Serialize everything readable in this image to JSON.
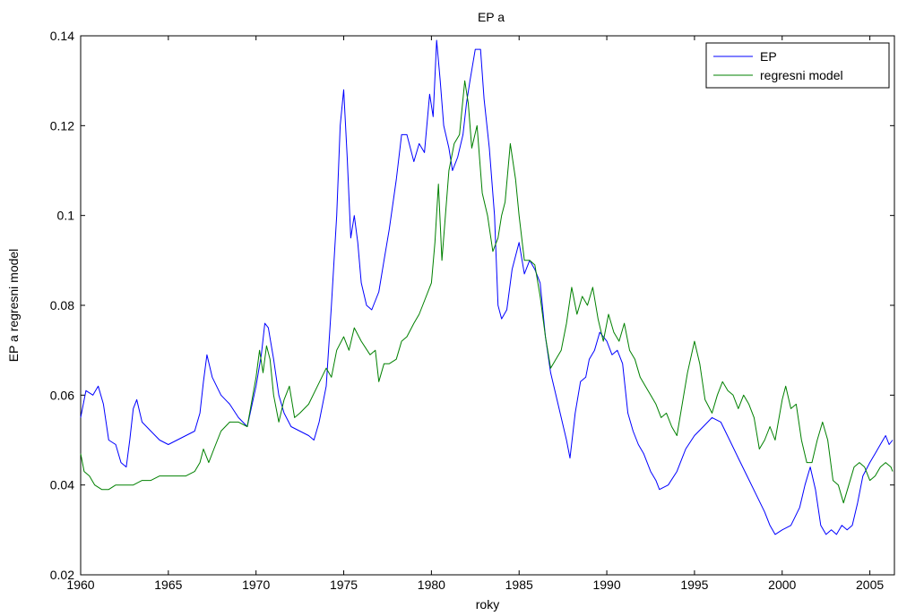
{
  "chart_data": {
    "type": "line",
    "title": "EP a",
    "xlabel": "roky",
    "ylabel": "EP a regresni model",
    "xlim": [
      1960,
      2006.4
    ],
    "ylim": [
      0.02,
      0.14
    ],
    "xticks": [
      1960,
      1965,
      1970,
      1975,
      1980,
      1985,
      1990,
      1995,
      2000,
      2005
    ],
    "xtick_labels": [
      "1960",
      "1965",
      "1970",
      "1975",
      "1980",
      "1985",
      "1990",
      "1995",
      "2000",
      "2005"
    ],
    "yticks": [
      0.02,
      0.04,
      0.06,
      0.08,
      0.1,
      0.12,
      0.14
    ],
    "ytick_labels": [
      "0.02",
      "0.04",
      "0.06",
      "0.08",
      "0.1",
      "0.12",
      "0.14"
    ],
    "grid": false,
    "legend_position": "top-right",
    "series": [
      {
        "name": "EP",
        "color": "#0000ff",
        "points": [
          [
            1960.0,
            0.055
          ],
          [
            1960.3,
            0.061
          ],
          [
            1960.7,
            0.06
          ],
          [
            1961.0,
            0.062
          ],
          [
            1961.3,
            0.058
          ],
          [
            1961.6,
            0.05
          ],
          [
            1962.0,
            0.049
          ],
          [
            1962.3,
            0.045
          ],
          [
            1962.6,
            0.044
          ],
          [
            1962.8,
            0.05
          ],
          [
            1963.0,
            0.057
          ],
          [
            1963.2,
            0.059
          ],
          [
            1963.5,
            0.054
          ],
          [
            1964.0,
            0.052
          ],
          [
            1964.5,
            0.05
          ],
          [
            1965.0,
            0.049
          ],
          [
            1965.5,
            0.05
          ],
          [
            1966.0,
            0.051
          ],
          [
            1966.5,
            0.052
          ],
          [
            1966.8,
            0.056
          ],
          [
            1967.0,
            0.063
          ],
          [
            1967.2,
            0.069
          ],
          [
            1967.5,
            0.064
          ],
          [
            1968.0,
            0.06
          ],
          [
            1968.5,
            0.058
          ],
          [
            1969.0,
            0.055
          ],
          [
            1969.5,
            0.053
          ],
          [
            1970.0,
            0.062
          ],
          [
            1970.3,
            0.069
          ],
          [
            1970.5,
            0.076
          ],
          [
            1970.7,
            0.075
          ],
          [
            1971.0,
            0.068
          ],
          [
            1971.3,
            0.06
          ],
          [
            1971.6,
            0.056
          ],
          [
            1972.0,
            0.053
          ],
          [
            1972.5,
            0.052
          ],
          [
            1973.0,
            0.051
          ],
          [
            1973.3,
            0.05
          ],
          [
            1973.6,
            0.054
          ],
          [
            1974.0,
            0.062
          ],
          [
            1974.3,
            0.08
          ],
          [
            1974.6,
            0.1
          ],
          [
            1974.8,
            0.12
          ],
          [
            1975.0,
            0.128
          ],
          [
            1975.2,
            0.113
          ],
          [
            1975.4,
            0.095
          ],
          [
            1975.6,
            0.1
          ],
          [
            1975.8,
            0.094
          ],
          [
            1976.0,
            0.085
          ],
          [
            1976.3,
            0.08
          ],
          [
            1976.6,
            0.079
          ],
          [
            1977.0,
            0.083
          ],
          [
            1977.3,
            0.09
          ],
          [
            1977.6,
            0.097
          ],
          [
            1978.0,
            0.108
          ],
          [
            1978.3,
            0.118
          ],
          [
            1978.6,
            0.118
          ],
          [
            1979.0,
            0.112
          ],
          [
            1979.3,
            0.116
          ],
          [
            1979.6,
            0.114
          ],
          [
            1979.9,
            0.127
          ],
          [
            1980.1,
            0.122
          ],
          [
            1980.3,
            0.139
          ],
          [
            1980.5,
            0.13
          ],
          [
            1980.7,
            0.12
          ],
          [
            1981.0,
            0.115
          ],
          [
            1981.2,
            0.11
          ],
          [
            1981.5,
            0.113
          ],
          [
            1981.8,
            0.118
          ],
          [
            1982.0,
            0.125
          ],
          [
            1982.2,
            0.13
          ],
          [
            1982.5,
            0.137
          ],
          [
            1982.8,
            0.137
          ],
          [
            1983.0,
            0.126
          ],
          [
            1983.3,
            0.115
          ],
          [
            1983.6,
            0.1
          ],
          [
            1983.8,
            0.08
          ],
          [
            1984.0,
            0.077
          ],
          [
            1984.3,
            0.079
          ],
          [
            1984.6,
            0.088
          ],
          [
            1985.0,
            0.094
          ],
          [
            1985.3,
            0.087
          ],
          [
            1985.6,
            0.09
          ],
          [
            1985.9,
            0.088
          ],
          [
            1986.2,
            0.085
          ],
          [
            1986.5,
            0.073
          ],
          [
            1986.8,
            0.065
          ],
          [
            1987.1,
            0.06
          ],
          [
            1987.4,
            0.055
          ],
          [
            1987.7,
            0.05
          ],
          [
            1987.9,
            0.046
          ],
          [
            1988.2,
            0.056
          ],
          [
            1988.5,
            0.063
          ],
          [
            1988.8,
            0.064
          ],
          [
            1989.0,
            0.068
          ],
          [
            1989.3,
            0.07
          ],
          [
            1989.6,
            0.074
          ],
          [
            1990.0,
            0.072
          ],
          [
            1990.3,
            0.069
          ],
          [
            1990.6,
            0.07
          ],
          [
            1990.9,
            0.067
          ],
          [
            1991.2,
            0.056
          ],
          [
            1991.5,
            0.052
          ],
          [
            1991.8,
            0.049
          ],
          [
            1992.1,
            0.047
          ],
          [
            1992.5,
            0.043
          ],
          [
            1992.8,
            0.041
          ],
          [
            1993.0,
            0.039
          ],
          [
            1993.5,
            0.04
          ],
          [
            1994.0,
            0.043
          ],
          [
            1994.5,
            0.048
          ],
          [
            1995.0,
            0.051
          ],
          [
            1995.5,
            0.053
          ],
          [
            1996.0,
            0.055
          ],
          [
            1996.5,
            0.054
          ],
          [
            1997.0,
            0.05
          ],
          [
            1997.5,
            0.046
          ],
          [
            1998.0,
            0.042
          ],
          [
            1998.5,
            0.038
          ],
          [
            1999.0,
            0.034
          ],
          [
            1999.3,
            0.031
          ],
          [
            1999.6,
            0.029
          ],
          [
            2000.0,
            0.03
          ],
          [
            2000.5,
            0.031
          ],
          [
            2001.0,
            0.035
          ],
          [
            2001.3,
            0.04
          ],
          [
            2001.6,
            0.044
          ],
          [
            2001.9,
            0.039
          ],
          [
            2002.2,
            0.031
          ],
          [
            2002.5,
            0.029
          ],
          [
            2002.8,
            0.03
          ],
          [
            2003.1,
            0.029
          ],
          [
            2003.4,
            0.031
          ],
          [
            2003.7,
            0.03
          ],
          [
            2004.0,
            0.031
          ],
          [
            2004.3,
            0.036
          ],
          [
            2004.6,
            0.042
          ],
          [
            2005.0,
            0.045
          ],
          [
            2005.3,
            0.047
          ],
          [
            2005.6,
            0.049
          ],
          [
            2005.9,
            0.051
          ],
          [
            2006.1,
            0.049
          ],
          [
            2006.3,
            0.05
          ]
        ]
      },
      {
        "name": "regresni model",
        "color": "#008000",
        "points": [
          [
            1960.0,
            0.047
          ],
          [
            1960.2,
            0.043
          ],
          [
            1960.5,
            0.042
          ],
          [
            1960.8,
            0.04
          ],
          [
            1961.2,
            0.039
          ],
          [
            1961.6,
            0.039
          ],
          [
            1962.0,
            0.04
          ],
          [
            1962.5,
            0.04
          ],
          [
            1963.0,
            0.04
          ],
          [
            1963.5,
            0.041
          ],
          [
            1964.0,
            0.041
          ],
          [
            1964.5,
            0.042
          ],
          [
            1965.0,
            0.042
          ],
          [
            1965.5,
            0.042
          ],
          [
            1966.0,
            0.042
          ],
          [
            1966.5,
            0.043
          ],
          [
            1966.8,
            0.045
          ],
          [
            1967.0,
            0.048
          ],
          [
            1967.3,
            0.045
          ],
          [
            1967.6,
            0.048
          ],
          [
            1968.0,
            0.052
          ],
          [
            1968.5,
            0.054
          ],
          [
            1969.0,
            0.054
          ],
          [
            1969.5,
            0.053
          ],
          [
            1970.0,
            0.064
          ],
          [
            1970.2,
            0.07
          ],
          [
            1970.4,
            0.065
          ],
          [
            1970.6,
            0.071
          ],
          [
            1970.8,
            0.068
          ],
          [
            1971.0,
            0.06
          ],
          [
            1971.3,
            0.054
          ],
          [
            1971.6,
            0.059
          ],
          [
            1971.9,
            0.062
          ],
          [
            1972.2,
            0.055
          ],
          [
            1972.5,
            0.056
          ],
          [
            1973.0,
            0.058
          ],
          [
            1973.5,
            0.062
          ],
          [
            1974.0,
            0.066
          ],
          [
            1974.3,
            0.064
          ],
          [
            1974.6,
            0.07
          ],
          [
            1975.0,
            0.073
          ],
          [
            1975.3,
            0.07
          ],
          [
            1975.6,
            0.075
          ],
          [
            1976.0,
            0.072
          ],
          [
            1976.5,
            0.069
          ],
          [
            1976.8,
            0.07
          ],
          [
            1977.0,
            0.063
          ],
          [
            1977.3,
            0.067
          ],
          [
            1977.6,
            0.067
          ],
          [
            1978.0,
            0.068
          ],
          [
            1978.3,
            0.072
          ],
          [
            1978.6,
            0.073
          ],
          [
            1979.0,
            0.076
          ],
          [
            1979.3,
            0.078
          ],
          [
            1979.6,
            0.081
          ],
          [
            1980.0,
            0.085
          ],
          [
            1980.2,
            0.094
          ],
          [
            1980.4,
            0.107
          ],
          [
            1980.6,
            0.09
          ],
          [
            1980.8,
            0.1
          ],
          [
            1981.0,
            0.11
          ],
          [
            1981.3,
            0.116
          ],
          [
            1981.6,
            0.118
          ],
          [
            1981.9,
            0.13
          ],
          [
            1982.1,
            0.125
          ],
          [
            1982.3,
            0.115
          ],
          [
            1982.6,
            0.12
          ],
          [
            1982.9,
            0.105
          ],
          [
            1983.2,
            0.1
          ],
          [
            1983.5,
            0.092
          ],
          [
            1983.8,
            0.095
          ],
          [
            1984.0,
            0.1
          ],
          [
            1984.2,
            0.103
          ],
          [
            1984.5,
            0.116
          ],
          [
            1984.8,
            0.108
          ],
          [
            1985.0,
            0.1
          ],
          [
            1985.3,
            0.09
          ],
          [
            1985.6,
            0.09
          ],
          [
            1985.9,
            0.089
          ],
          [
            1986.2,
            0.082
          ],
          [
            1986.5,
            0.073
          ],
          [
            1986.8,
            0.066
          ],
          [
            1987.1,
            0.068
          ],
          [
            1987.4,
            0.07
          ],
          [
            1987.7,
            0.076
          ],
          [
            1988.0,
            0.084
          ],
          [
            1988.3,
            0.078
          ],
          [
            1988.6,
            0.082
          ],
          [
            1988.9,
            0.08
          ],
          [
            1989.2,
            0.084
          ],
          [
            1989.5,
            0.077
          ],
          [
            1989.8,
            0.072
          ],
          [
            1990.1,
            0.078
          ],
          [
            1990.4,
            0.074
          ],
          [
            1990.7,
            0.072
          ],
          [
            1991.0,
            0.076
          ],
          [
            1991.3,
            0.07
          ],
          [
            1991.6,
            0.068
          ],
          [
            1991.9,
            0.064
          ],
          [
            1992.2,
            0.062
          ],
          [
            1992.5,
            0.06
          ],
          [
            1992.8,
            0.058
          ],
          [
            1993.1,
            0.055
          ],
          [
            1993.4,
            0.056
          ],
          [
            1993.7,
            0.053
          ],
          [
            1994.0,
            0.051
          ],
          [
            1994.3,
            0.058
          ],
          [
            1994.6,
            0.065
          ],
          [
            1995.0,
            0.072
          ],
          [
            1995.3,
            0.067
          ],
          [
            1995.6,
            0.059
          ],
          [
            1996.0,
            0.056
          ],
          [
            1996.3,
            0.06
          ],
          [
            1996.6,
            0.063
          ],
          [
            1996.9,
            0.061
          ],
          [
            1997.2,
            0.06
          ],
          [
            1997.5,
            0.057
          ],
          [
            1997.8,
            0.06
          ],
          [
            1998.1,
            0.058
          ],
          [
            1998.4,
            0.055
          ],
          [
            1998.7,
            0.048
          ],
          [
            1999.0,
            0.05
          ],
          [
            1999.3,
            0.053
          ],
          [
            1999.6,
            0.05
          ],
          [
            2000.0,
            0.059
          ],
          [
            2000.2,
            0.062
          ],
          [
            2000.5,
            0.057
          ],
          [
            2000.8,
            0.058
          ],
          [
            2001.1,
            0.05
          ],
          [
            2001.4,
            0.045
          ],
          [
            2001.7,
            0.045
          ],
          [
            2002.0,
            0.05
          ],
          [
            2002.3,
            0.054
          ],
          [
            2002.6,
            0.05
          ],
          [
            2002.9,
            0.041
          ],
          [
            2003.2,
            0.04
          ],
          [
            2003.5,
            0.036
          ],
          [
            2003.8,
            0.04
          ],
          [
            2004.1,
            0.044
          ],
          [
            2004.4,
            0.045
          ],
          [
            2004.7,
            0.044
          ],
          [
            2005.0,
            0.041
          ],
          [
            2005.3,
            0.042
          ],
          [
            2005.6,
            0.044
          ],
          [
            2005.9,
            0.045
          ],
          [
            2006.2,
            0.044
          ],
          [
            2006.3,
            0.043
          ]
        ]
      }
    ]
  }
}
